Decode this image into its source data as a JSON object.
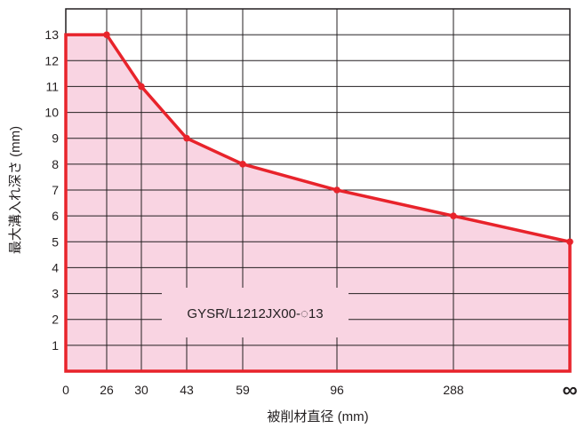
{
  "chart_data": {
    "type": "area",
    "title": "",
    "xlabel": "被削材直径 (mm)",
    "ylabel": "最大溝入れ深さ (mm)",
    "x_tick_labels": [
      "0",
      "26",
      "30",
      "43",
      "59",
      "96",
      "288",
      "∞"
    ],
    "y_tick_labels": [
      "1",
      "2",
      "3",
      "4",
      "5",
      "6",
      "7",
      "8",
      "9",
      "10",
      "11",
      "12",
      "13"
    ],
    "ylim": [
      0,
      14
    ],
    "grid": true,
    "annotation": "GYSR/L1212JX00-◌13",
    "series": [
      {
        "x": [
          "0",
          "26",
          "30",
          "43",
          "59",
          "96",
          "288",
          "∞"
        ],
        "values": [
          13,
          13,
          11,
          9,
          8,
          7,
          6,
          5
        ]
      }
    ],
    "colors": {
      "line": "#e8232b",
      "fill": "#f9d4e2",
      "grid": "#231f20",
      "frame": "#231f20"
    }
  }
}
